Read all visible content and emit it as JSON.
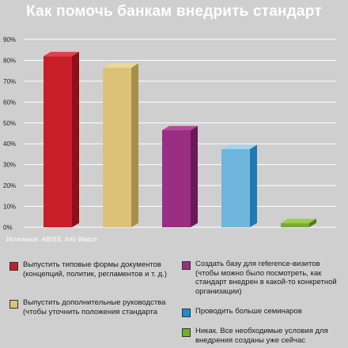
{
  "title": "Как помочь банкам внедрить стандарт",
  "source": "Источник:  ABISS, Info Watch",
  "chart_data": {
    "type": "bar",
    "ylim": [
      0,
      90
    ],
    "yticks": [
      "0%",
      "10%",
      "20%",
      "30%",
      "40%",
      "50%",
      "60%",
      "70%",
      "80%",
      "90%"
    ],
    "grid": true,
    "values": [
      82,
      76.5,
      46.5,
      37.5,
      2
    ],
    "series_colors": [
      {
        "front": "#c81e28",
        "side": "#8e1018",
        "top": "#e0404a"
      },
      {
        "front": "#dcc276",
        "side": "#a88e48",
        "top": "#ecd796"
      },
      {
        "front": "#9a2e82",
        "side": "#6a1a58",
        "top": "#b44a9c"
      },
      {
        "front": "#6fb6dc",
        "side": "#1f7ab2",
        "top": "#a4d4ec"
      },
      {
        "front": "#7aaa34",
        "side": "#4e7a1c",
        "top": "#9ccc50"
      }
    ],
    "legend": [
      {
        "label": "Выпустить типовые формы документов (концепций, политик, регламентов и т. д.)",
        "color": "#c81e28"
      },
      {
        "label": "Выпустить дополнительные руководства (чтобы уточнить положения стандарта",
        "color": "#dcc276"
      },
      {
        "label": "Создать базу для reference-визитов (чтобы можно было посмотреть, как стандарт внедрен в какой-то конкретной организации)",
        "color": "#9a2e82"
      },
      {
        "label": "Проводить больше семинаров",
        "color": "#1a8ed0"
      },
      {
        "label": "Никак. Все необходимые условия для внедрения созданы уже сейчас",
        "color": "#6fae30"
      }
    ]
  }
}
